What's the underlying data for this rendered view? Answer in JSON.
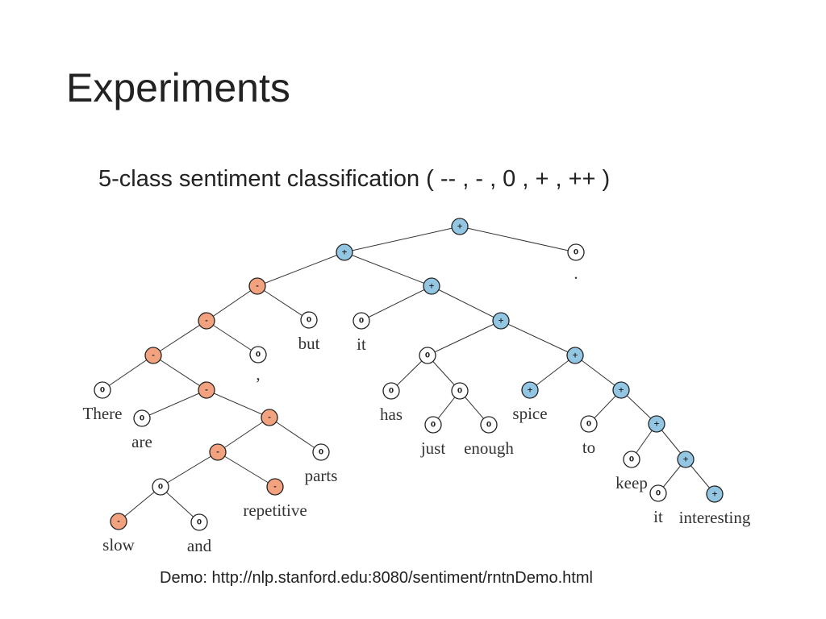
{
  "title": "Experiments",
  "subtitle": "5-class sentiment classification ( -- , - , 0 , + , ++ )",
  "node_colors": {
    "+": "#93c6e3",
    "-": "#f3a27f",
    "0": "#ffffff"
  },
  "nodes": [
    {
      "label": "+"
    },
    {
      "label": "+"
    },
    {
      "label": "0",
      "word": "."
    },
    {
      "label": "-"
    },
    {
      "label": "+"
    },
    {
      "label": "-"
    },
    {
      "label": "0",
      "word": "but"
    },
    {
      "label": "0",
      "word": "it"
    },
    {
      "label": "+"
    },
    {
      "label": "-"
    },
    {
      "label": "0",
      "word": ","
    },
    {
      "label": "0"
    },
    {
      "label": "+"
    },
    {
      "label": "0",
      "word": "There"
    },
    {
      "label": "-"
    },
    {
      "label": "0",
      "word": "has"
    },
    {
      "label": "0"
    },
    {
      "label": "+",
      "word": "spice"
    },
    {
      "label": "+"
    },
    {
      "label": "0",
      "word": "are"
    },
    {
      "label": "-"
    },
    {
      "label": "0",
      "word": "just"
    },
    {
      "label": "0",
      "word": "enough"
    },
    {
      "label": "0",
      "word": "to"
    },
    {
      "label": "+"
    },
    {
      "label": "-"
    },
    {
      "label": "0",
      "word": "parts"
    },
    {
      "label": "0",
      "word": "keep"
    },
    {
      "label": "+"
    },
    {
      "label": "0"
    },
    {
      "label": "-",
      "word": "repetitive"
    },
    {
      "label": "0",
      "word": "it"
    },
    {
      "label": "+",
      "word": "interesting"
    },
    {
      "label": "-",
      "word": "slow"
    },
    {
      "label": "0",
      "word": "and"
    }
  ],
  "demo": "Demo: http://nlp.stanford.edu:8080/sentiment/rntnDemo.html"
}
